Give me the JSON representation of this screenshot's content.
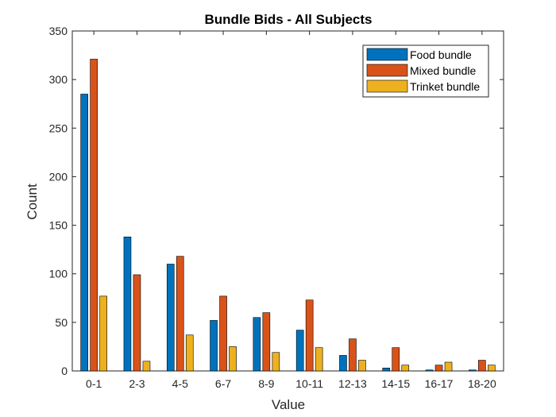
{
  "chart_data": {
    "type": "bar",
    "title": "Bundle Bids - All Subjects",
    "xlabel": "Value",
    "ylabel": "Count",
    "ylim": [
      0,
      350
    ],
    "yticks": [
      "0",
      "50",
      "100",
      "150",
      "200",
      "250",
      "300",
      "350"
    ],
    "categories": [
      "0-1",
      "2-3",
      "4-5",
      "6-7",
      "8-9",
      "10-11",
      "12-13",
      "14-15",
      "16-17",
      "18-20"
    ],
    "series": [
      {
        "name": "Food bundle",
        "color": "#0072BD",
        "values": [
          285,
          138,
          110,
          52,
          55,
          42,
          16,
          3,
          1,
          1
        ]
      },
      {
        "name": "Mixed bundle",
        "color": "#D95319",
        "values": [
          321,
          99,
          118,
          77,
          60,
          73,
          33,
          24,
          6,
          11
        ]
      },
      {
        "name": "Trinket bundle",
        "color": "#EDB120",
        "values": [
          77,
          10,
          37,
          25,
          19,
          24,
          11,
          6,
          9,
          6
        ]
      }
    ],
    "legend_position": "top-right",
    "grid": false
  }
}
